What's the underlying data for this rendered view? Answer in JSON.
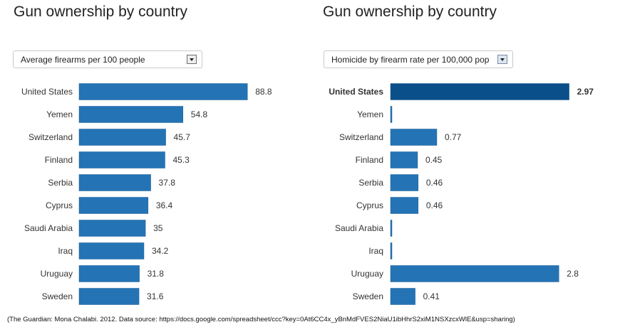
{
  "source_note": "(The Guardian: Mona Chalabi. 2012. Data source: https://docs.google.com/spreadsheet/ccc?key=0At6CC4x_yBnMdFVES2NiaU1ibHhrS2xiM1NSXzcxWlE&usp=sharing)",
  "colors": {
    "bar": "#2474b5",
    "bar_highlight": "#0b4f8a",
    "bar_stroke": "#1a5f96"
  },
  "left": {
    "title": "Gun ownership by country",
    "select_value": "Average firearms per 100 people",
    "select_icon": "chevron-down-icon"
  },
  "right": {
    "title": "Gun ownership by country",
    "select_value": "Homicide by firearm rate per 100,000 pop",
    "select_icon": "chevron-down-icon"
  },
  "chart_data": [
    {
      "type": "bar",
      "orientation": "horizontal",
      "title": "Gun ownership by country",
      "metric": "Average firearms per 100 people",
      "categories": [
        "United States",
        "Yemen",
        "Switzerland",
        "Finland",
        "Serbia",
        "Cyprus",
        "Saudi Arabia",
        "Iraq",
        "Uruguay",
        "Sweden"
      ],
      "values": [
        88.8,
        54.8,
        45.7,
        45.3,
        37.8,
        36.4,
        35,
        34.2,
        31.8,
        31.6
      ],
      "value_labels": [
        "88.8",
        "54.8",
        "45.7",
        "45.3",
        "37.8",
        "36.4",
        "35",
        "34.2",
        "31.8",
        "31.6"
      ],
      "highlight": null,
      "xlim": [
        0,
        100
      ],
      "grid": false,
      "legend": "none"
    },
    {
      "type": "bar",
      "orientation": "horizontal",
      "title": "Gun ownership by country",
      "metric": "Homicide by firearm rate per 100,000 pop",
      "categories": [
        "United States",
        "Yemen",
        "Switzerland",
        "Finland",
        "Serbia",
        "Cyprus",
        "Saudi Arabia",
        "Iraq",
        "Uruguay",
        "Sweden"
      ],
      "values": [
        2.97,
        0,
        0.77,
        0.45,
        0.46,
        0.46,
        0,
        0,
        2.8,
        0.41
      ],
      "value_labels": [
        "2.97",
        "",
        "0.77",
        "0.45",
        "0.46",
        "0.46",
        "",
        "",
        "2.8",
        "0.41"
      ],
      "highlight": "United States",
      "xlim": [
        0,
        3.2
      ],
      "grid": false,
      "legend": "none"
    }
  ]
}
